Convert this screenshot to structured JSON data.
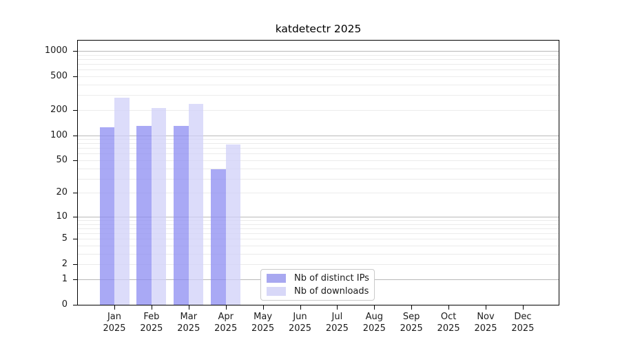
{
  "chart_data": {
    "type": "bar",
    "title": "katdetectr 2025",
    "categories": [
      "Jan",
      "Feb",
      "Mar",
      "Apr",
      "May",
      "Jun",
      "Jul",
      "Aug",
      "Sep",
      "Oct",
      "Nov",
      "Dec"
    ],
    "x_year_line": "2025",
    "series": [
      {
        "name": "Nb of distinct IPs",
        "color": "#a8a8f0",
        "fill_rgba": "rgba(140,140,242,0.75)",
        "values": [
          124,
          129,
          128,
          39,
          0,
          0,
          0,
          0,
          0,
          0,
          0,
          0
        ]
      },
      {
        "name": "Nb of downloads",
        "color": "#d8d8f8",
        "fill_rgba": "rgba(208,208,248,0.75)",
        "values": [
          281,
          212,
          236,
          77,
          0,
          0,
          0,
          0,
          0,
          0,
          0,
          0
        ]
      }
    ],
    "yticks": [
      0,
      1,
      2,
      5,
      10,
      20,
      50,
      100,
      200,
      500,
      1000
    ],
    "scale": "log10(value+1)",
    "ylim": [
      0,
      1360
    ],
    "grid": {
      "major_lines": [
        1,
        10,
        100,
        1000
      ],
      "minor_multipliers": [
        2,
        3,
        4,
        5,
        6,
        7,
        8,
        9
      ],
      "minor_decades": [
        1,
        10,
        100
      ],
      "major_color": "#b8b8b8",
      "minor_color": "#ebebeb"
    },
    "legend_position": "bottom-center",
    "axis_color": "#000000",
    "background": "#ffffff"
  }
}
